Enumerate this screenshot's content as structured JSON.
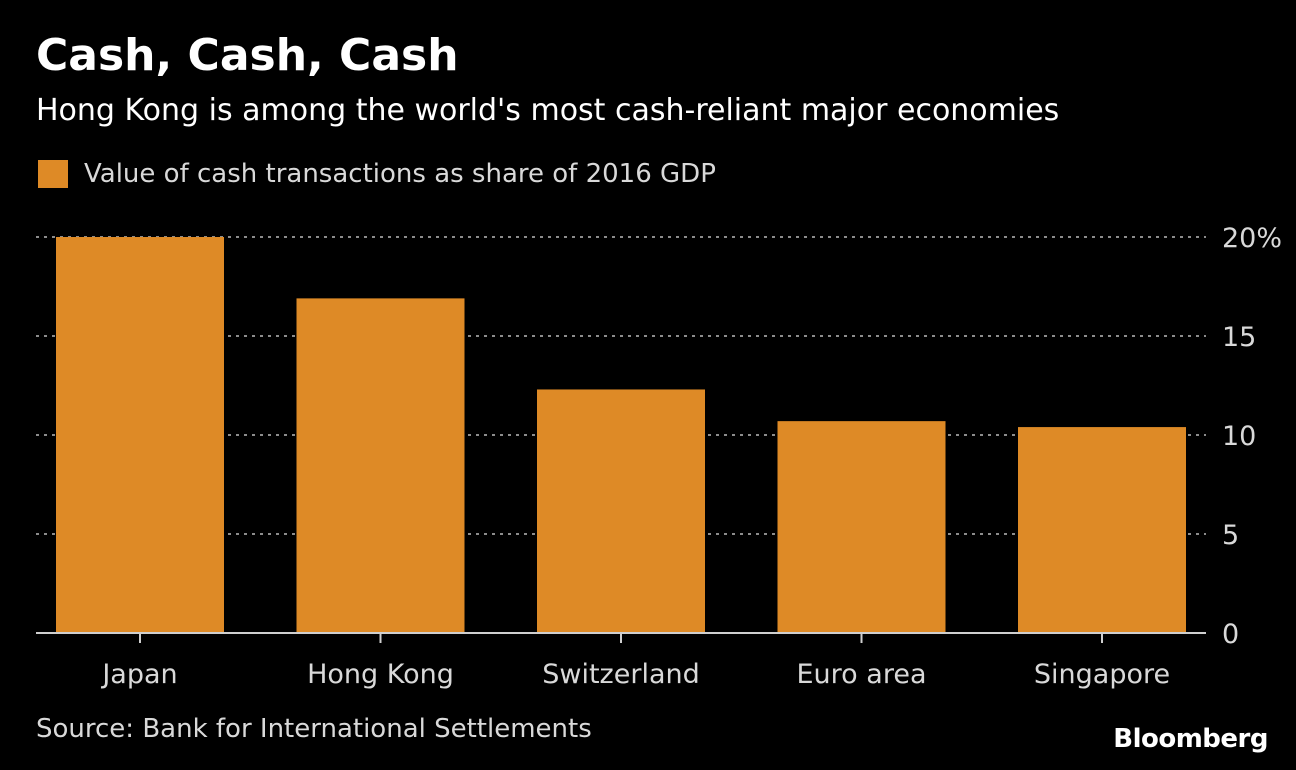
{
  "colors": {
    "background": "#000000",
    "bar": "#DE8A26",
    "grid": "#8c8c8c",
    "text": "#ffffff",
    "muted_text": "#d9d9d9"
  },
  "chart_data": {
    "type": "bar",
    "title": "Cash, Cash, Cash",
    "subtitle": "Hong Kong is among the world's most cash-reliant major economies",
    "legend": [
      {
        "label": "Value of cash transactions as share of 2016 GDP",
        "color": "#DE8A26"
      }
    ],
    "categories": [
      "Japan",
      "Hong Kong",
      "Switzerland",
      "Euro area",
      "Singapore"
    ],
    "series": [
      {
        "name": "Value of cash transactions as share of 2016 GDP",
        "values": [
          20.0,
          16.9,
          12.3,
          10.7,
          10.4
        ]
      }
    ],
    "ylim": [
      0,
      20
    ],
    "yticks": [
      0,
      5,
      10,
      15,
      20
    ],
    "ytick_labels": [
      "0",
      "5",
      "10",
      "15",
      "20%"
    ],
    "y_axis_position": "right",
    "grid": true,
    "xlabel": "",
    "ylabel": ""
  },
  "footer": {
    "source": "Source: Bank for International Settlements",
    "brand": "Bloomberg"
  }
}
